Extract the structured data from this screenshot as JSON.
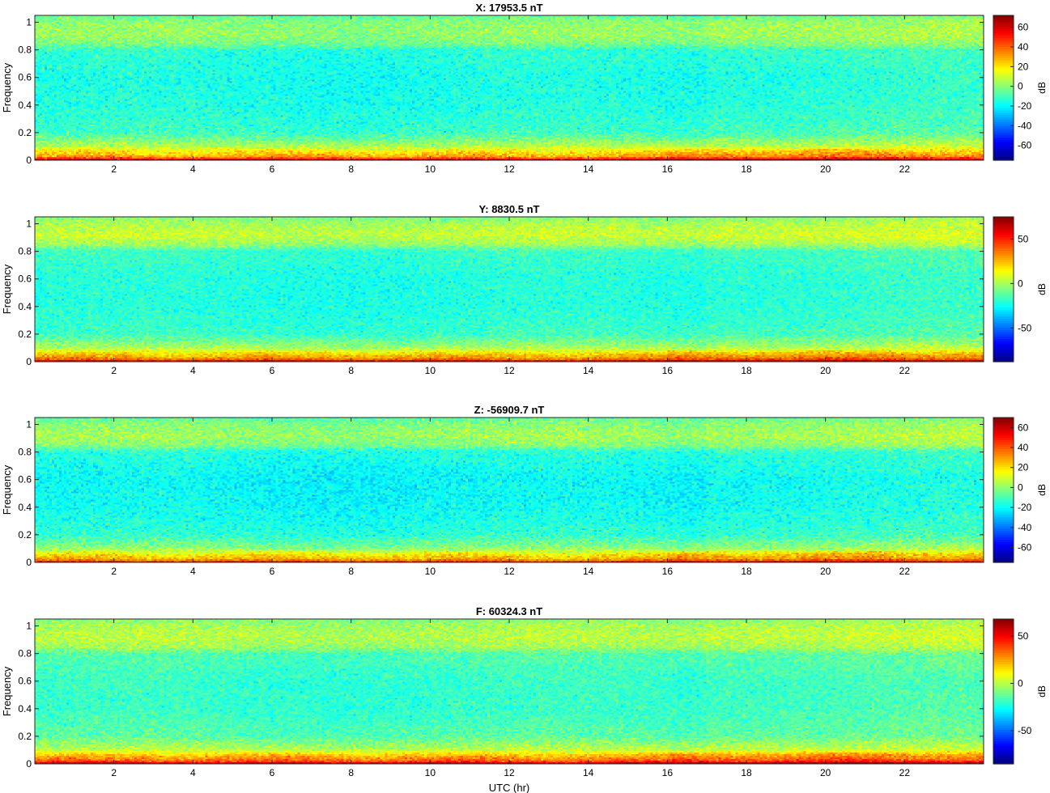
{
  "figure": {
    "xlabel": "UTC (hr)",
    "ylabel": "Frequency",
    "colorbar_label": "dB",
    "colormap": "jet"
  },
  "chart_data": [
    {
      "type": "heatmap",
      "title": "X: 17953.5 nT",
      "xlabel": "",
      "ylabel": "Frequency",
      "xlim": [
        0,
        24
      ],
      "ylim": [
        0,
        1.05
      ],
      "xticks": [
        2,
        4,
        6,
        8,
        10,
        12,
        14,
        16,
        18,
        20,
        22
      ],
      "yticks": [
        0,
        0.2,
        0.4,
        0.6,
        0.8,
        1
      ],
      "ytick_labels": [
        "0",
        "0.2",
        "0.4",
        "0.6",
        "0.8",
        "1"
      ],
      "colorbar": {
        "label": "dB",
        "range": [
          -75,
          72
        ],
        "ticks": [
          60,
          40,
          20,
          0,
          -20,
          -40,
          -60
        ]
      },
      "profile": {
        "description_free_levels_dB": true,
        "freq": [
          0,
          0.01,
          0.03,
          0.06,
          0.1,
          0.2,
          0.4,
          0.6,
          0.8,
          0.85,
          0.92,
          1.0,
          1.05
        ],
        "db": [
          72,
          45,
          28,
          20,
          5,
          -12,
          -16,
          -17,
          -14,
          -2,
          2,
          0,
          -6
        ]
      }
    },
    {
      "type": "heatmap",
      "title": "Y: 8830.5 nT",
      "xlabel": "",
      "ylabel": "Frequency",
      "xlim": [
        0,
        24
      ],
      "ylim": [
        0,
        1.05
      ],
      "xticks": [
        2,
        4,
        6,
        8,
        10,
        12,
        14,
        16,
        18,
        20,
        22
      ],
      "yticks": [
        0,
        0.2,
        0.4,
        0.6,
        0.8,
        1
      ],
      "ytick_labels": [
        "0",
        "0.2",
        "0.4",
        "0.6",
        "0.8",
        "1"
      ],
      "colorbar": {
        "label": "dB",
        "range": [
          -88,
          75
        ],
        "ticks": [
          50,
          0,
          -50
        ]
      },
      "profile": {
        "freq": [
          0,
          0.01,
          0.03,
          0.06,
          0.1,
          0.2,
          0.4,
          0.6,
          0.8,
          0.85,
          0.92,
          1.0,
          1.05
        ],
        "db": [
          75,
          45,
          30,
          20,
          0,
          -18,
          -22,
          -22,
          -18,
          -2,
          5,
          0,
          -8
        ]
      }
    },
    {
      "type": "heatmap",
      "title": "Z: -56909.7 nT",
      "xlabel": "",
      "ylabel": "Frequency",
      "xlim": [
        0,
        24
      ],
      "ylim": [
        0,
        1.05
      ],
      "xticks": [
        2,
        4,
        6,
        8,
        10,
        12,
        14,
        16,
        18,
        20,
        22
      ],
      "yticks": [
        0,
        0.2,
        0.4,
        0.6,
        0.8,
        1
      ],
      "ytick_labels": [
        "0",
        "0.2",
        "0.4",
        "0.6",
        "0.8",
        "1"
      ],
      "colorbar": {
        "label": "dB",
        "range": [
          -75,
          70
        ],
        "ticks": [
          60,
          40,
          20,
          0,
          -20,
          -40,
          -60
        ]
      },
      "profile": {
        "freq": [
          0,
          0.01,
          0.03,
          0.06,
          0.1,
          0.2,
          0.4,
          0.6,
          0.8,
          0.85,
          0.92,
          1.0,
          1.05
        ],
        "db": [
          60,
          38,
          25,
          18,
          0,
          -15,
          -20,
          -21,
          -16,
          -2,
          2,
          -2,
          -8
        ]
      }
    },
    {
      "type": "heatmap",
      "title": "F: 60324.3 nT",
      "xlabel": "UTC (hr)",
      "ylabel": "Frequency",
      "xlim": [
        0,
        24
      ],
      "ylim": [
        0,
        1.05
      ],
      "xticks": [
        2,
        4,
        6,
        8,
        10,
        12,
        14,
        16,
        18,
        20,
        22
      ],
      "yticks": [
        0,
        0.2,
        0.4,
        0.6,
        0.8,
        1
      ],
      "ytick_labels": [
        "0",
        "0.2",
        "0.4",
        "0.6",
        "0.8",
        "1"
      ],
      "colorbar": {
        "label": "dB",
        "range": [
          -85,
          68
        ],
        "ticks": [
          50,
          0,
          -50
        ]
      },
      "profile": {
        "freq": [
          0,
          0.01,
          0.03,
          0.06,
          0.1,
          0.2,
          0.4,
          0.6,
          0.8,
          0.85,
          0.92,
          1.0,
          1.05
        ],
        "db": [
          68,
          45,
          30,
          20,
          0,
          -15,
          -20,
          -20,
          -16,
          -4,
          0,
          -3,
          -8
        ]
      }
    }
  ]
}
